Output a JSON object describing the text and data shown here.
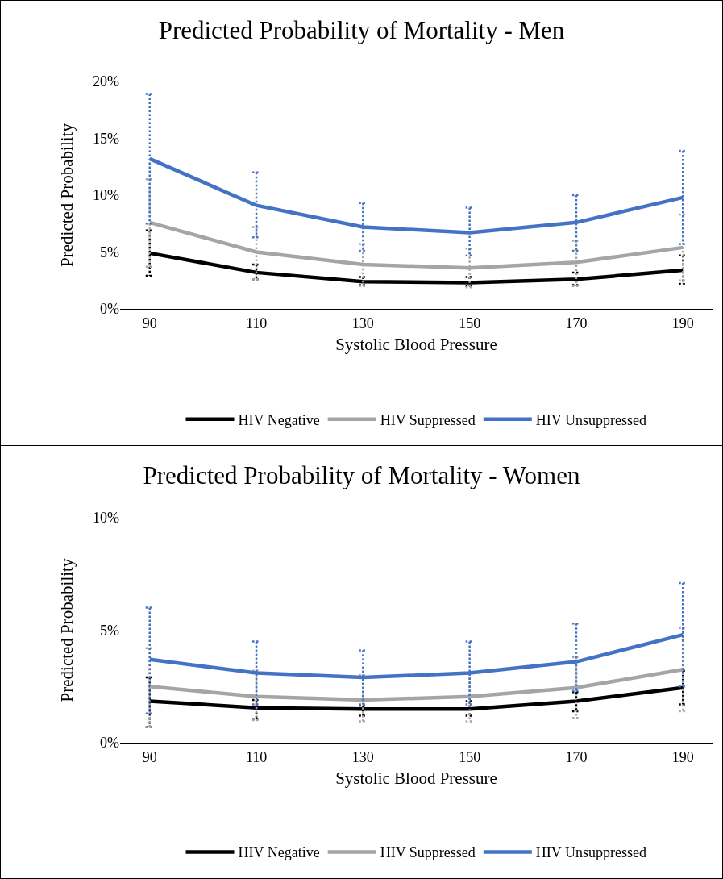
{
  "chart_data": [
    {
      "type": "line",
      "title": "Predicted Probability of Mortality - Men",
      "xlabel": "Systolic Blood Pressure",
      "ylabel": "Predicted Probability",
      "categories": [
        "90",
        "110",
        "130",
        "150",
        "170",
        "190"
      ],
      "ylim": [
        0,
        20
      ],
      "yticks": [
        {
          "value": 0,
          "label": "0%"
        },
        {
          "value": 5,
          "label": "5%"
        },
        {
          "value": 10,
          "label": "10%"
        },
        {
          "value": 15,
          "label": "15%"
        },
        {
          "value": 20,
          "label": "20%"
        }
      ],
      "legend": "bottom",
      "line_style": "solid",
      "series": [
        {
          "name": "HIV Negative",
          "color": "#000000",
          "values": [
            4.9,
            3.2,
            2.4,
            2.3,
            2.6,
            3.4
          ],
          "errors": [
            [
              2.9,
              6.9
            ],
            [
              2.6,
              3.9
            ],
            [
              2.1,
              2.8
            ],
            [
              2.0,
              2.8
            ],
            [
              2.1,
              3.2
            ],
            [
              2.2,
              4.7
            ]
          ]
        },
        {
          "name": "HIV Suppressed",
          "color": "#a5a5a5",
          "values": [
            7.6,
            5.0,
            3.9,
            3.6,
            4.1,
            5.4
          ],
          "errors": [
            [
              3.7,
              11.4
            ],
            [
              2.6,
              7.2
            ],
            [
              2.0,
              5.7
            ],
            [
              1.9,
              5.3
            ],
            [
              2.0,
              6.0
            ],
            [
              2.5,
              8.3
            ]
          ]
        },
        {
          "name": "HIV Unsuppressed",
          "color": "#4472c4",
          "values": [
            13.2,
            9.1,
            7.2,
            6.7,
            7.6,
            9.8
          ],
          "errors": [
            [
              7.5,
              18.9
            ],
            [
              6.3,
              12.0
            ],
            [
              5.1,
              9.3
            ],
            [
              4.7,
              8.9
            ],
            [
              5.1,
              10.0
            ],
            [
              5.7,
              13.9
            ]
          ]
        }
      ]
    },
    {
      "type": "line",
      "title": "Predicted Probability of Mortality - Women",
      "xlabel": "Systolic Blood Pressure",
      "ylabel": "Predicted Probability",
      "categories": [
        "90",
        "110",
        "130",
        "150",
        "170",
        "190"
      ],
      "ylim": [
        0,
        10
      ],
      "yticks": [
        {
          "value": 0,
          "label": "0%"
        },
        {
          "value": 5,
          "label": "5%"
        },
        {
          "value": 10,
          "label": "10%"
        }
      ],
      "legend": "bottom",
      "line_style": "solid",
      "series": [
        {
          "name": "HIV Negative",
          "color": "#000000",
          "values": [
            1.85,
            1.55,
            1.5,
            1.5,
            1.85,
            2.45
          ],
          "errors": [
            [
              0.7,
              2.9
            ],
            [
              1.05,
              1.9
            ],
            [
              1.2,
              1.65
            ],
            [
              1.2,
              1.85
            ],
            [
              1.4,
              2.25
            ],
            [
              1.7,
              3.2
            ]
          ]
        },
        {
          "name": "HIV Suppressed",
          "color": "#a5a5a5",
          "values": [
            2.5,
            2.05,
            1.9,
            2.05,
            2.45,
            3.25
          ],
          "errors": [
            [
              0.7,
              4.2
            ],
            [
              1.0,
              3.2
            ],
            [
              0.95,
              3.0
            ],
            [
              0.95,
              3.1
            ],
            [
              1.1,
              3.8
            ],
            [
              1.4,
              5.1
            ]
          ]
        },
        {
          "name": "HIV Unsuppressed",
          "color": "#4472c4",
          "values": [
            3.7,
            3.1,
            2.9,
            3.1,
            3.6,
            4.8
          ],
          "errors": [
            [
              1.3,
              6.0
            ],
            [
              1.7,
              4.5
            ],
            [
              1.7,
              4.1
            ],
            [
              1.7,
              4.5
            ],
            [
              2.3,
              5.3
            ],
            [
              2.5,
              7.1
            ]
          ]
        }
      ]
    }
  ]
}
